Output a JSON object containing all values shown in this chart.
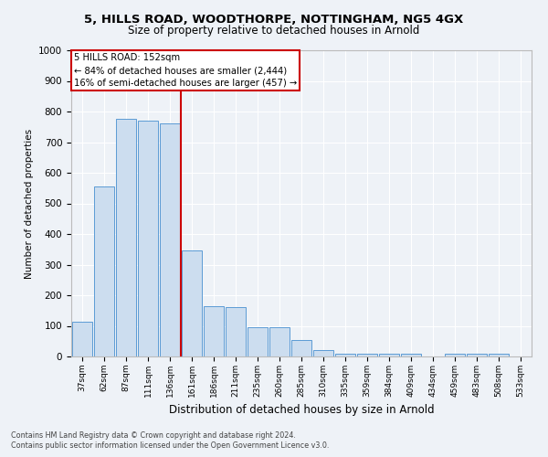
{
  "title1": "5, HILLS ROAD, WOODTHORPE, NOTTINGHAM, NG5 4GX",
  "title2": "Size of property relative to detached houses in Arnold",
  "xlabel": "Distribution of detached houses by size in Arnold",
  "ylabel": "Number of detached properties",
  "categories": [
    "37sqm",
    "62sqm",
    "87sqm",
    "111sqm",
    "136sqm",
    "161sqm",
    "186sqm",
    "211sqm",
    "235sqm",
    "260sqm",
    "285sqm",
    "310sqm",
    "335sqm",
    "359sqm",
    "384sqm",
    "409sqm",
    "434sqm",
    "459sqm",
    "483sqm",
    "508sqm",
    "533sqm"
  ],
  "values": [
    113,
    555,
    775,
    770,
    760,
    345,
    165,
    160,
    95,
    95,
    55,
    20,
    10,
    10,
    10,
    8,
    0,
    8,
    8,
    8,
    0
  ],
  "bar_color": "#ccddef",
  "bar_edge_color": "#5b9bd5",
  "red_line_x": 4.5,
  "annotation_line1": "5 HILLS ROAD: 152sqm",
  "annotation_line2": "← 84% of detached houses are smaller (2,444)",
  "annotation_line3": "16% of semi-detached houses are larger (457) →",
  "red_line_color": "#cc0000",
  "ylim": [
    0,
    1000
  ],
  "yticks": [
    0,
    100,
    200,
    300,
    400,
    500,
    600,
    700,
    800,
    900,
    1000
  ],
  "footer1": "Contains HM Land Registry data © Crown copyright and database right 2024.",
  "footer2": "Contains public sector information licensed under the Open Government Licence v3.0.",
  "bg_color": "#eef2f7",
  "plot_bg_color": "#eef2f7"
}
